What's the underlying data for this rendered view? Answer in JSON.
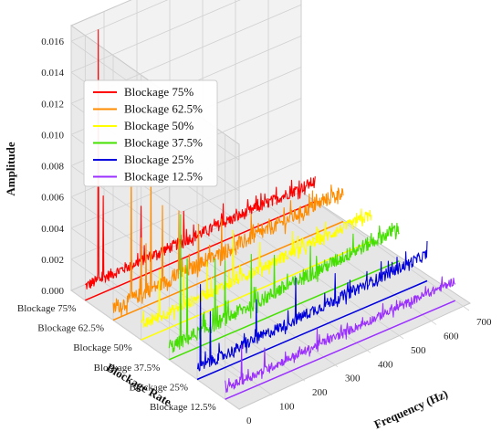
{
  "chart_data": {
    "type": "line",
    "subtype": "3d-waterfall",
    "title": "",
    "xlabel": "Frequency (Hz)",
    "ylabel": "Blockage Rate",
    "zlabel": "Amplitude",
    "x_ticks": [
      "0",
      "100",
      "200",
      "300",
      "400",
      "500",
      "600",
      "700"
    ],
    "y_ticks": [
      "Blockage 75%",
      "Blockage 62.5%",
      "Blockage 50%",
      "Blockage 37.5%",
      "Blockage 25%",
      "Blockage 12.5%"
    ],
    "z_ticks": [
      "0.000",
      "0.002",
      "0.004",
      "0.006",
      "0.008",
      "0.010",
      "0.012",
      "0.014",
      "0.016"
    ],
    "xlim": [
      0,
      700
    ],
    "zlim": [
      0,
      0.017
    ],
    "grid": true,
    "legend_position": "top-left",
    "series": [
      {
        "name": "Blockage 75%",
        "color": "#ff0000",
        "baseline_start": 0.0008,
        "baseline_end": 0.0012,
        "noise": 0.0004,
        "peaks": [
          {
            "x": 40,
            "y": 0.017
          },
          {
            "x": 55,
            "y": 0.0062
          },
          {
            "x": 170,
            "y": 0.0045
          },
          {
            "x": 300,
            "y": 0.003
          },
          {
            "x": 420,
            "y": 0.0024
          },
          {
            "x": 520,
            "y": 0.002
          }
        ]
      },
      {
        "name": "Blockage 62.5%",
        "color": "#ff8c00",
        "baseline_start": 0.0006,
        "baseline_end": 0.0018,
        "noise": 0.0005,
        "peaks": [
          {
            "x": 55,
            "y": 0.0098
          },
          {
            "x": 85,
            "y": 0.0045
          },
          {
            "x": 100,
            "y": 0.004
          },
          {
            "x": 115,
            "y": 0.009
          },
          {
            "x": 150,
            "y": 0.006
          },
          {
            "x": 200,
            "y": 0.0052
          },
          {
            "x": 260,
            "y": 0.0038
          },
          {
            "x": 330,
            "y": 0.0035
          },
          {
            "x": 420,
            "y": 0.003
          },
          {
            "x": 520,
            "y": 0.0025
          }
        ]
      },
      {
        "name": "Blockage 50%",
        "color": "#ffff00",
        "baseline_start": 0.0008,
        "baseline_end": 0.0016,
        "noise": 0.0004,
        "peaks": [
          {
            "x": 55,
            "y": 0.004
          },
          {
            "x": 130,
            "y": 0.0035
          },
          {
            "x": 200,
            "y": 0.0032
          },
          {
            "x": 280,
            "y": 0.0045
          },
          {
            "x": 360,
            "y": 0.003
          },
          {
            "x": 460,
            "y": 0.0028
          },
          {
            "x": 560,
            "y": 0.0025
          }
        ]
      },
      {
        "name": "Blockage 37.5%",
        "color": "#44e000",
        "baseline_start": 0.0006,
        "baseline_end": 0.002,
        "noise": 0.0005,
        "peaks": [
          {
            "x": 35,
            "y": 0.009
          },
          {
            "x": 55,
            "y": 0.006
          },
          {
            "x": 140,
            "y": 0.0052
          },
          {
            "x": 170,
            "y": 0.0048
          },
          {
            "x": 250,
            "y": 0.0045
          },
          {
            "x": 320,
            "y": 0.0038
          },
          {
            "x": 430,
            "y": 0.0034
          },
          {
            "x": 560,
            "y": 0.003
          },
          {
            "x": 640,
            "y": 0.0028
          }
        ]
      },
      {
        "name": "Blockage 25%",
        "color": "#0000dd",
        "baseline_start": 0.0006,
        "baseline_end": 0.0016,
        "noise": 0.0004,
        "peaks": [
          {
            "x": 10,
            "y": 0.006
          },
          {
            "x": 40,
            "y": 0.004
          },
          {
            "x": 180,
            "y": 0.0035
          },
          {
            "x": 300,
            "y": 0.0038
          },
          {
            "x": 420,
            "y": 0.003
          },
          {
            "x": 560,
            "y": 0.0025
          }
        ]
      },
      {
        "name": "Blockage 12.5%",
        "color": "#9b30ff",
        "baseline_start": 0.0006,
        "baseline_end": 0.0012,
        "noise": 0.0003,
        "peaks": [
          {
            "x": 50,
            "y": 0.003
          },
          {
            "x": 120,
            "y": 0.0022
          },
          {
            "x": 280,
            "y": 0.002
          },
          {
            "x": 480,
            "y": 0.0018
          }
        ]
      }
    ]
  }
}
